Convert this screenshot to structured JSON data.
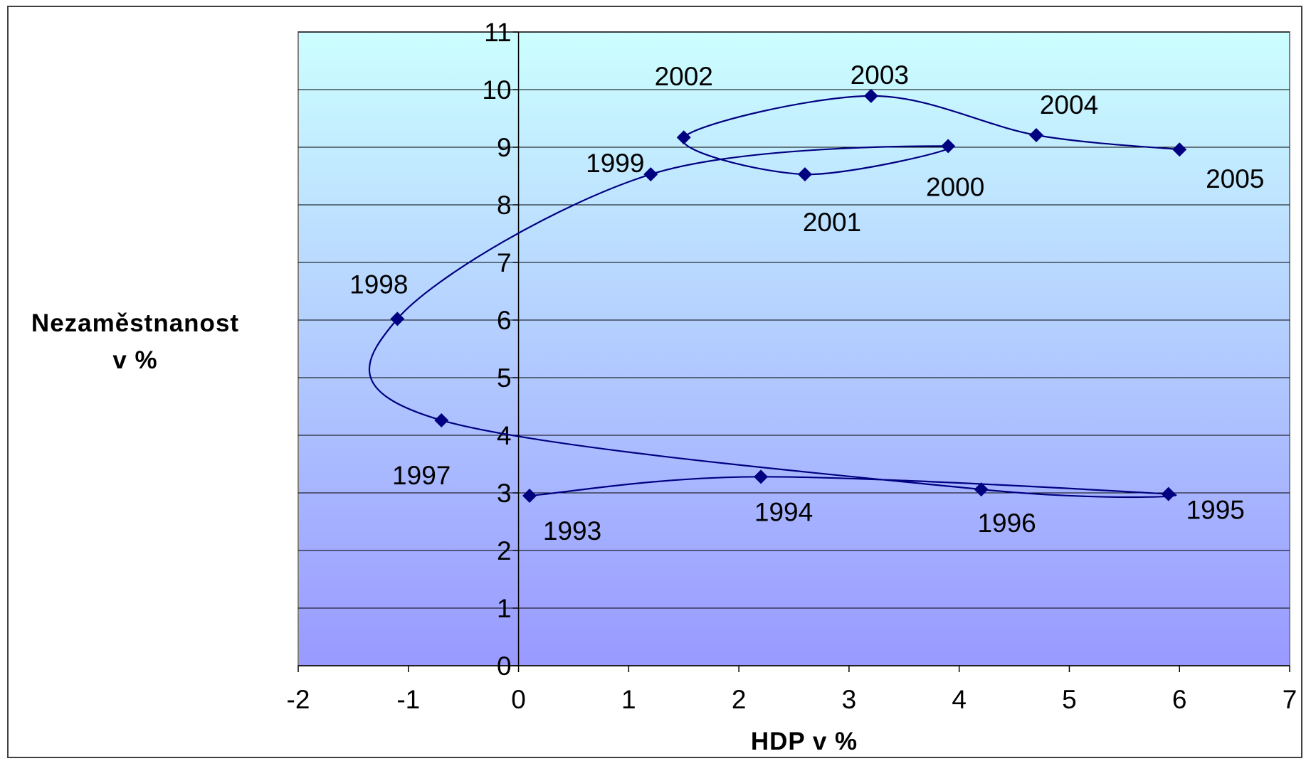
{
  "chart_data": {
    "type": "scatter",
    "title": "",
    "xlabel": "HDP v %",
    "ylabel": [
      "Nezaměstnanost",
      "v %"
    ],
    "xlim": [
      -2,
      7
    ],
    "ylim": [
      0,
      11
    ],
    "x_ticks": [
      -2,
      -1,
      0,
      1,
      2,
      3,
      4,
      5,
      6,
      7
    ],
    "y_ticks": [
      0,
      1,
      2,
      3,
      4,
      5,
      6,
      7,
      8,
      9,
      10,
      11
    ],
    "grid": "horizontal",
    "legend": "none",
    "series": [
      {
        "points": [
          {
            "label": "1993",
            "x": 0.1,
            "y": 2.95
          },
          {
            "label": "1994",
            "x": 2.2,
            "y": 3.28
          },
          {
            "label": "1995",
            "x": 5.9,
            "y": 2.98
          },
          {
            "label": "1996",
            "x": 4.2,
            "y": 3.06
          },
          {
            "label": "1997",
            "x": -0.7,
            "y": 4.26
          },
          {
            "label": "1998",
            "x": -1.1,
            "y": 6.02
          },
          {
            "label": "1999",
            "x": 1.2,
            "y": 8.53
          },
          {
            "label": "2000",
            "x": 3.9,
            "y": 9.02
          },
          {
            "label": "2001",
            "x": 2.6,
            "y": 8.53
          },
          {
            "label": "2002",
            "x": 1.5,
            "y": 9.17
          },
          {
            "label": "2003",
            "x": 3.2,
            "y": 9.89
          },
          {
            "label": "2004",
            "x": 4.7,
            "y": 9.21
          },
          {
            "label": "2005",
            "x": 6.0,
            "y": 8.96
          }
        ]
      }
    ],
    "colors": {
      "series": "#000080",
      "plot_top": "#ccffff",
      "plot_bottom": "#9999ff",
      "grid": "#000000"
    }
  }
}
